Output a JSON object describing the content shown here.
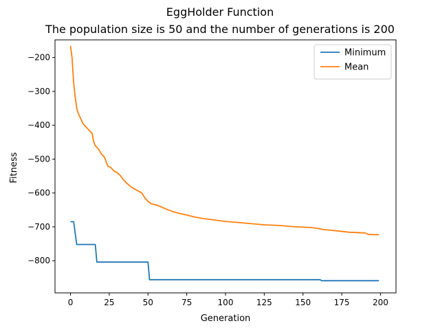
{
  "chart_data": {
    "type": "line",
    "title": "EggHolder Function",
    "subtitle": "The population size is 50 and the number of generations is 200",
    "xlabel": "Generation",
    "ylabel": "Fitness",
    "xlim": [
      -10,
      210
    ],
    "ylim": [
      -895,
      -148
    ],
    "xticks": [
      0,
      25,
      50,
      75,
      100,
      125,
      150,
      175,
      200
    ],
    "yticks": [
      -200,
      -300,
      -400,
      -500,
      -600,
      -700,
      -800
    ],
    "legend_position": "top-right",
    "grid": false,
    "series": [
      {
        "name": "Minimum",
        "color": "#1f77b4",
        "points": [
          [
            0,
            -685
          ],
          [
            2,
            -685
          ],
          [
            4,
            -752
          ],
          [
            16,
            -752
          ],
          [
            17,
            -804
          ],
          [
            50,
            -804
          ],
          [
            51,
            -856
          ],
          [
            161,
            -856
          ],
          [
            162,
            -859
          ],
          [
            199,
            -859
          ]
        ]
      },
      {
        "name": "Mean",
        "color": "#ff7f0e",
        "points": [
          [
            0,
            -166
          ],
          [
            1,
            -200
          ],
          [
            2,
            -275
          ],
          [
            3,
            -315
          ],
          [
            4,
            -350
          ],
          [
            5,
            -365
          ],
          [
            6,
            -375
          ],
          [
            7,
            -385
          ],
          [
            8,
            -395
          ],
          [
            9,
            -400
          ],
          [
            10,
            -405
          ],
          [
            12,
            -415
          ],
          [
            14,
            -425
          ],
          [
            15,
            -450
          ],
          [
            16,
            -460
          ],
          [
            18,
            -470
          ],
          [
            20,
            -485
          ],
          [
            22,
            -495
          ],
          [
            24,
            -520
          ],
          [
            26,
            -525
          ],
          [
            28,
            -535
          ],
          [
            30,
            -540
          ],
          [
            32,
            -548
          ],
          [
            34,
            -560
          ],
          [
            36,
            -570
          ],
          [
            38,
            -578
          ],
          [
            40,
            -585
          ],
          [
            42,
            -590
          ],
          [
            44,
            -595
          ],
          [
            46,
            -600
          ],
          [
            48,
            -615
          ],
          [
            50,
            -625
          ],
          [
            52,
            -632
          ],
          [
            55,
            -635
          ],
          [
            58,
            -640
          ],
          [
            62,
            -648
          ],
          [
            66,
            -655
          ],
          [
            70,
            -660
          ],
          [
            75,
            -665
          ],
          [
            80,
            -671
          ],
          [
            85,
            -675
          ],
          [
            90,
            -678
          ],
          [
            95,
            -681
          ],
          [
            100,
            -684
          ],
          [
            105,
            -686
          ],
          [
            110,
            -688
          ],
          [
            115,
            -690
          ],
          [
            120,
            -692
          ],
          [
            125,
            -694
          ],
          [
            130,
            -695
          ],
          [
            135,
            -696
          ],
          [
            140,
            -698
          ],
          [
            145,
            -700
          ],
          [
            150,
            -701
          ],
          [
            155,
            -702
          ],
          [
            160,
            -705
          ],
          [
            163,
            -708
          ],
          [
            168,
            -710
          ],
          [
            172,
            -712
          ],
          [
            176,
            -714
          ],
          [
            180,
            -716
          ],
          [
            185,
            -717
          ],
          [
            190,
            -718
          ],
          [
            192,
            -722
          ],
          [
            195,
            -723
          ],
          [
            199,
            -723
          ]
        ]
      }
    ]
  }
}
